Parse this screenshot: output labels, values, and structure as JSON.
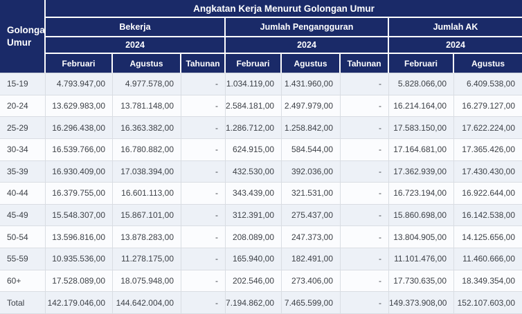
{
  "table": {
    "title": "Angkatan Kerja Menurut Golongan Umur",
    "row_header": "Golongan Umur",
    "groups": [
      {
        "label": "Bekerja",
        "year": "2024",
        "columns": [
          "Februari",
          "Agustus",
          "Tahunan"
        ]
      },
      {
        "label": "Jumlah Pengangguran",
        "year": "2024",
        "columns": [
          "Februari",
          "Agustus",
          "Tahunan"
        ]
      },
      {
        "label": "Jumlah AK",
        "year": "2024",
        "columns": [
          "Februari",
          "Agustus"
        ]
      }
    ],
    "rows": [
      {
        "label": "15-19",
        "values": [
          "4.793.947,00",
          "4.977.578,00",
          "-",
          "1.034.119,00",
          "1.431.960,00",
          "-",
          "5.828.066,00",
          "6.409.538,00"
        ]
      },
      {
        "label": "20-24",
        "values": [
          "13.629.983,00",
          "13.781.148,00",
          "-",
          "2.584.181,00",
          "2.497.979,00",
          "-",
          "16.214.164,00",
          "16.279.127,00"
        ]
      },
      {
        "label": "25-29",
        "values": [
          "16.296.438,00",
          "16.363.382,00",
          "-",
          "1.286.712,00",
          "1.258.842,00",
          "-",
          "17.583.150,00",
          "17.622.224,00"
        ]
      },
      {
        "label": "30-34",
        "values": [
          "16.539.766,00",
          "16.780.882,00",
          "-",
          "624.915,00",
          "584.544,00",
          "-",
          "17.164.681,00",
          "17.365.426,00"
        ]
      },
      {
        "label": "35-39",
        "values": [
          "16.930.409,00",
          "17.038.394,00",
          "-",
          "432.530,00",
          "392.036,00",
          "-",
          "17.362.939,00",
          "17.430.430,00"
        ]
      },
      {
        "label": "40-44",
        "values": [
          "16.379.755,00",
          "16.601.113,00",
          "-",
          "343.439,00",
          "321.531,00",
          "-",
          "16.723.194,00",
          "16.922.644,00"
        ]
      },
      {
        "label": "45-49",
        "values": [
          "15.548.307,00",
          "15.867.101,00",
          "-",
          "312.391,00",
          "275.437,00",
          "-",
          "15.860.698,00",
          "16.142.538,00"
        ]
      },
      {
        "label": "50-54",
        "values": [
          "13.596.816,00",
          "13.878.283,00",
          "-",
          "208.089,00",
          "247.373,00",
          "-",
          "13.804.905,00",
          "14.125.656,00"
        ]
      },
      {
        "label": "55-59",
        "values": [
          "10.935.536,00",
          "11.278.175,00",
          "-",
          "165.940,00",
          "182.491,00",
          "-",
          "11.101.476,00",
          "11.460.666,00"
        ]
      },
      {
        "label": "60+",
        "values": [
          "17.528.089,00",
          "18.075.948,00",
          "-",
          "202.546,00",
          "273.406,00",
          "-",
          "17.730.635,00",
          "18.349.354,00"
        ]
      },
      {
        "label": "Total",
        "values": [
          "142.179.046,00",
          "144.642.004,00",
          "-",
          "7.194.862,00",
          "7.465.599,00",
          "-",
          "149.373.908,00",
          "152.107.603,00"
        ]
      }
    ]
  },
  "chart_data": {
    "type": "table",
    "title": "Angkatan Kerja Menurut Golongan Umur",
    "row_header": "Golongan Umur",
    "column_groups": [
      "Bekerja 2024",
      "Jumlah Pengangguran 2024",
      "Jumlah AK 2024"
    ],
    "columns": [
      "Bekerja Februari",
      "Bekerja Agustus",
      "Bekerja Tahunan",
      "Pengangguran Februari",
      "Pengangguran Agustus",
      "Pengangguran Tahunan",
      "Jumlah AK Februari",
      "Jumlah AK Agustus"
    ],
    "categories": [
      "15-19",
      "20-24",
      "25-29",
      "30-34",
      "35-39",
      "40-44",
      "45-49",
      "50-54",
      "55-59",
      "60+",
      "Total"
    ],
    "series": [
      {
        "name": "Bekerja Februari 2024",
        "values": [
          4793947,
          13629983,
          16296438,
          16539766,
          16930409,
          16379755,
          15548307,
          13596816,
          10935536,
          17528089,
          142179046
        ]
      },
      {
        "name": "Bekerja Agustus 2024",
        "values": [
          4977578,
          13781148,
          16363382,
          16780882,
          17038394,
          16601113,
          15867101,
          13878283,
          11278175,
          18075948,
          144642004
        ]
      },
      {
        "name": "Pengangguran Februari 2024",
        "values": [
          1034119,
          2584181,
          1286712,
          624915,
          432530,
          343439,
          312391,
          208089,
          165940,
          202546,
          7194862
        ]
      },
      {
        "name": "Pengangguran Agustus 2024",
        "values": [
          1431960,
          2497979,
          1258842,
          584544,
          392036,
          321531,
          275437,
          247373,
          182491,
          273406,
          7465599
        ]
      },
      {
        "name": "Jumlah AK Februari 2024",
        "values": [
          5828066,
          16214164,
          17583150,
          17164681,
          17362939,
          16723194,
          15860698,
          13804905,
          11101476,
          17730635,
          149373908
        ]
      },
      {
        "name": "Jumlah AK Agustus 2024",
        "values": [
          6409538,
          16279127,
          17622224,
          17365426,
          17430430,
          16922644,
          16142538,
          14125656,
          11460666,
          18349354,
          152107603
        ]
      }
    ],
    "notes": "Tahunan columns show '-' (no data); number format uses Indonesian separators"
  },
  "colors": {
    "header_bg": "#1a2a68",
    "header_text": "#ffffff",
    "row_odd_bg": "#edf1f7",
    "row_even_bg": "#fbfcfe",
    "body_border": "#d9dde3",
    "body_text": "#3d4147"
  }
}
